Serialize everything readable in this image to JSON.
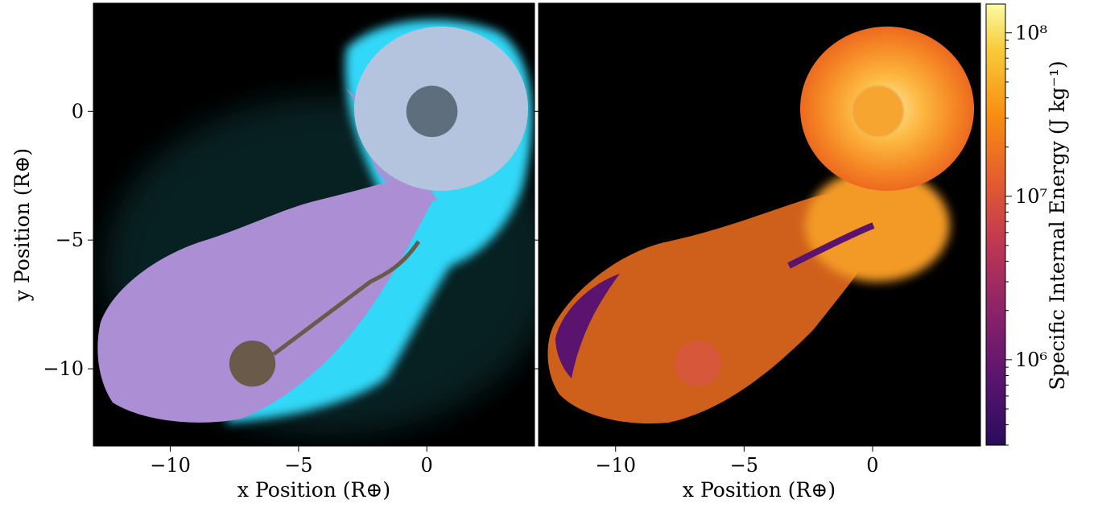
{
  "chart_data": [
    {
      "type": "scatter",
      "panel": "material",
      "xlabel": "x Position (R⊕)",
      "ylabel": "y Position (R⊕)",
      "xlim": [
        -13,
        4.2
      ],
      "ylim": [
        -13,
        4.2
      ],
      "xticks": [
        -10,
        -5,
        0
      ],
      "yticks": [
        0,
        -5,
        -10
      ],
      "xtick_labels": [
        "−10",
        "−5",
        "0"
      ],
      "ytick_labels": [
        "0",
        "−5",
        "−10"
      ],
      "background": "#000000",
      "colors": {
        "target_mantle": "#b4c4de",
        "target_atmosphere": "#30d8f8",
        "impactor_mantle": "#ac8ed4",
        "cores": "#5f6e7c",
        "impactor_core": "#6a5a4a"
      },
      "bodies": [
        {
          "x": 0.2,
          "y": 0.0,
          "r": 1.0,
          "color": "#5f6e7c"
        },
        {
          "x": -6.8,
          "y": -9.8,
          "r": 0.9,
          "color": "#6a5a4a"
        }
      ]
    },
    {
      "type": "scatter",
      "panel": "specific_internal_energy",
      "xlabel": "x Position (R⊕)",
      "xlim": [
        -13,
        4.2
      ],
      "ylim": [
        -13,
        4.2
      ],
      "xticks": [
        -10,
        -5,
        0
      ],
      "xtick_labels": [
        "−10",
        "−5",
        "0"
      ],
      "colormap": "inferno",
      "colorbar": {
        "label": "Specific Internal Energy (J kg⁻¹)",
        "scale": "log",
        "range": [
          300000,
          150000000
        ],
        "ticks": [
          1000000,
          10000000,
          100000000
        ],
        "tick_labels": [
          "10⁶",
          "10⁷",
          "10⁸"
        ]
      }
    }
  ]
}
